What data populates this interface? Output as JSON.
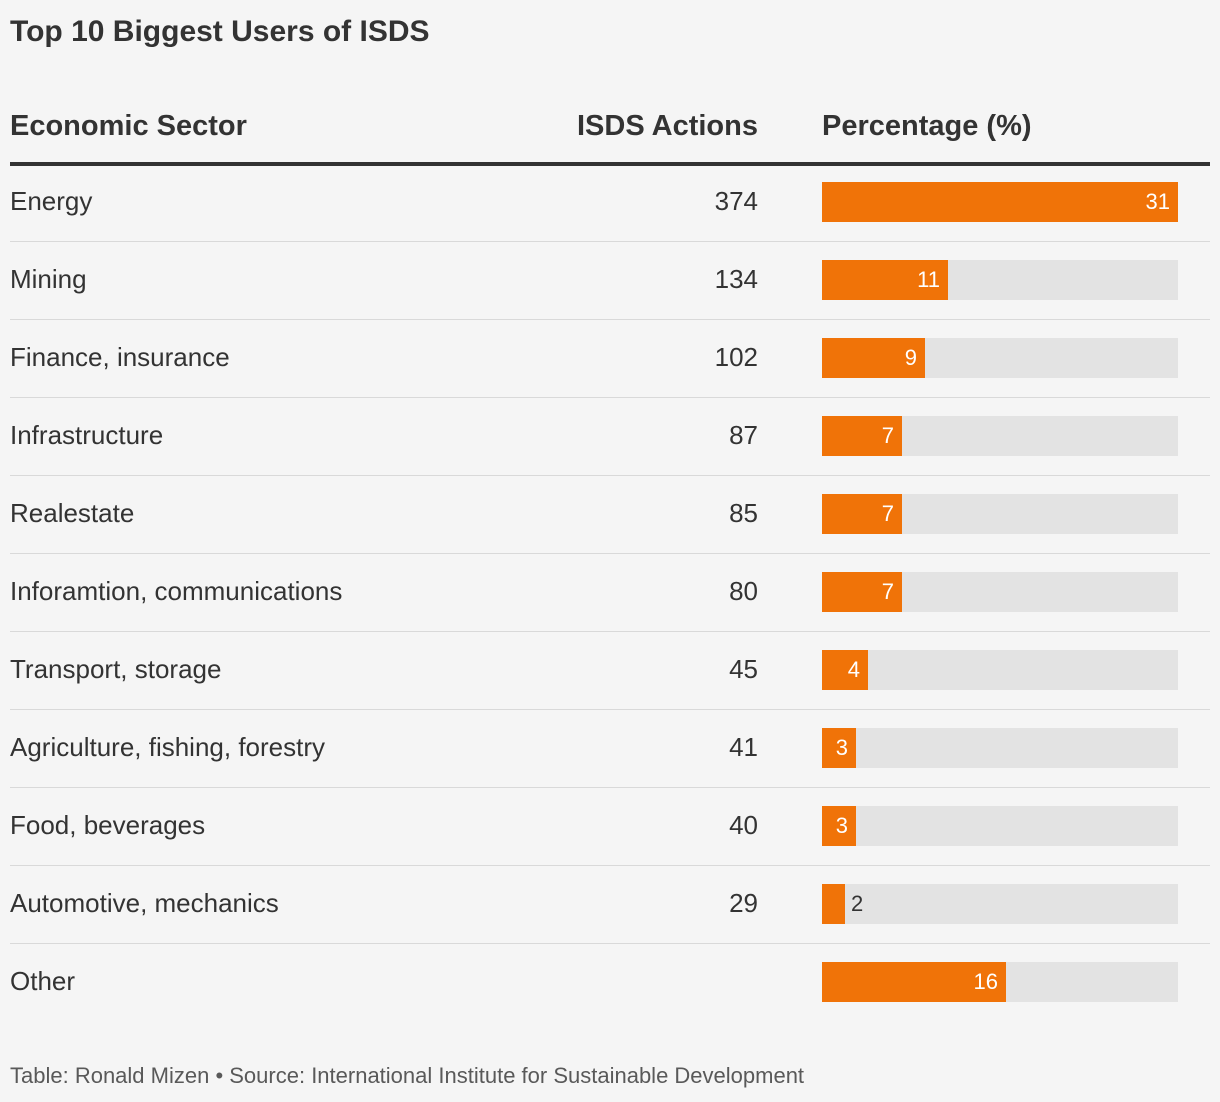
{
  "title": "Top 10 Biggest Users of ISDS",
  "columns": {
    "sector": "Economic Sector",
    "actions": "ISDS Actions",
    "percentage": "Percentage (%)"
  },
  "colors": {
    "bar": "#f07308",
    "track": "#e3e3e3",
    "background": "#f5f5f5",
    "text": "#333333"
  },
  "chart_data": {
    "type": "table",
    "title": "Top 10 Biggest Users of ISDS",
    "columns": [
      "Economic Sector",
      "ISDS Actions",
      "Percentage (%)"
    ],
    "xlim": [
      0,
      31
    ],
    "rows": [
      {
        "sector": "Energy",
        "actions": "374",
        "percentage": 31
      },
      {
        "sector": "Mining",
        "actions": "134",
        "percentage": 11
      },
      {
        "sector": "Finance, insurance",
        "actions": "102",
        "percentage": 9
      },
      {
        "sector": "Infrastructure",
        "actions": "87",
        "percentage": 7
      },
      {
        "sector": "Realestate",
        "actions": "85",
        "percentage": 7
      },
      {
        "sector": "Inforamtion, communications",
        "actions": "80",
        "percentage": 7
      },
      {
        "sector": "Transport, storage",
        "actions": "45",
        "percentage": 4
      },
      {
        "sector": "Agriculture, fishing, forestry",
        "actions": "41",
        "percentage": 3
      },
      {
        "sector": "Food, beverages",
        "actions": "40",
        "percentage": 3
      },
      {
        "sector": "Automotive, mechanics",
        "actions": "29",
        "percentage": 2
      },
      {
        "sector": "Other",
        "actions": "",
        "percentage": 16
      }
    ]
  },
  "footer": "Table: Ronald Mizen • Source: International Institute for Sustainable Development"
}
